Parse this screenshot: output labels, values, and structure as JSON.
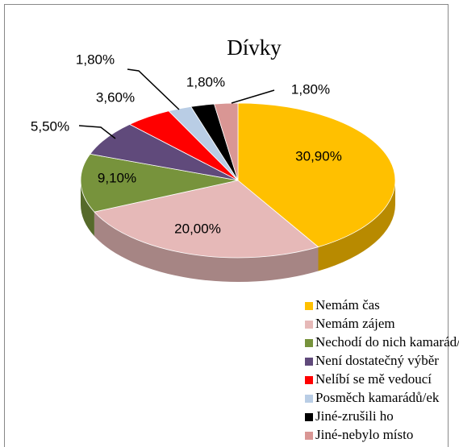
{
  "chart_data": {
    "type": "pie",
    "title": "Dívky",
    "categories": [
      "Nemám čas",
      "Nemám zájem",
      "Nechodí do nich kamarád/ka",
      "Není dostatečný výběr",
      "Nelíbí se mě vedoucí",
      "Posměch kamarádů/ek",
      "Jiné-zrušili ho",
      "Jiné-nebylo místo"
    ],
    "values": [
      30.9,
      20.0,
      9.1,
      5.5,
      3.6,
      1.8,
      1.8,
      1.8
    ],
    "value_labels": [
      "30,90%",
      "20,00%",
      "9,10%",
      "5,50%",
      "3,60%",
      "1,80%",
      "1,80%",
      "1,80%"
    ],
    "colors": [
      "#FFC000",
      "#E6B9B8",
      "#77933C",
      "#604A7B",
      "#FF0000",
      "#B9CDE5",
      "#000000",
      "#D99694"
    ]
  }
}
